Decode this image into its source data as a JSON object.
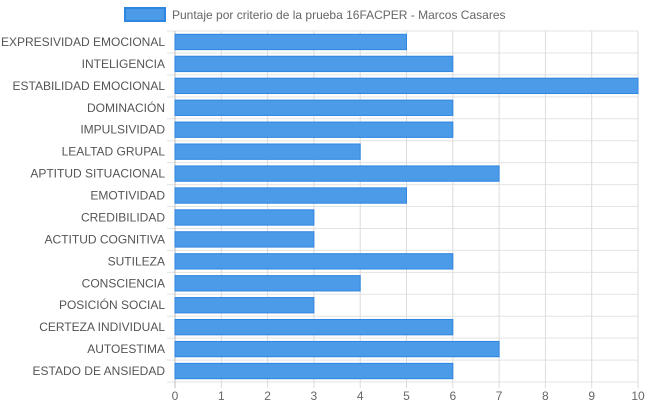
{
  "chart_data": {
    "type": "bar",
    "orientation": "horizontal",
    "legend_label": "Puntaje por criterio de la prueba 16FACPER - Marcos Casares",
    "legend_position": "top-center",
    "bar_color": "#4b9be8",
    "bar_border_color": "#2f86e0",
    "grid": true,
    "xlim": [
      0,
      10
    ],
    "x_ticks": [
      "0",
      "1",
      "2",
      "3",
      "4",
      "5",
      "6",
      "7",
      "8",
      "9",
      "10"
    ],
    "categories": [
      "EXPRESIVIDAD EMOCIONAL",
      "INTELIGENCIA",
      "ESTABILIDAD EMOCIONAL",
      "DOMINACIÓN",
      "IMPULSIVIDAD",
      "LEALTAD GRUPAL",
      "APTITUD SITUACIONAL",
      "EMOTIVIDAD",
      "CREDIBILIDAD",
      "ACTITUD COGNITIVA",
      "SUTILEZA",
      "CONSCIENCIA",
      "POSICIÓN SOCIAL",
      "CERTEZA INDIVIDUAL",
      "AUTOESTIMA",
      "ESTADO DE ANSIEDAD"
    ],
    "values": [
      5,
      6,
      10,
      6,
      6,
      4,
      7,
      5,
      3,
      3,
      6,
      4,
      3,
      6,
      7,
      6
    ]
  }
}
